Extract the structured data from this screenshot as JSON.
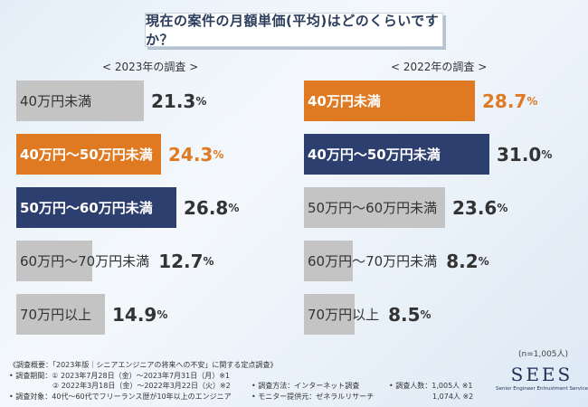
{
  "title": "現在の案件の月額単価(平均)はどのくらいですか？",
  "chart_data": [
    {
      "type": "bar",
      "title": "< 2023年の調査 >",
      "categories": [
        "40万円未満",
        "40万円～50万円未満",
        "50万円～60万円未満",
        "60万円～70万円未満",
        "70万円以上"
      ],
      "values": [
        21.3,
        24.3,
        26.8,
        12.7,
        14.9
      ],
      "unit": "%",
      "highlight": [
        null,
        "#e07a22",
        "#2d3f6e",
        null,
        null
      ]
    },
    {
      "type": "bar",
      "title": "< 2022年の調査 >",
      "categories": [
        "40万円未満",
        "40万円～50万円未満",
        "50万円～60万円未満",
        "60万円～70万円未満",
        "70万円以上"
      ],
      "values": [
        28.7,
        31.0,
        23.6,
        8.2,
        8.5
      ],
      "unit": "%",
      "highlight": [
        "#e07a22",
        "#2d3f6e",
        null,
        null,
        null
      ]
    }
  ],
  "colors": {
    "neutral_bar": "#c4c4c4",
    "orange": "#e07a22",
    "navy": "#2d3f6e",
    "title_text": "#2b3d5c"
  },
  "n_note": "(n=1,005人)",
  "footer": {
    "line1": "《調査概要：「2023年版｜シニアエンジニアの将来への不安」に関する定点調査》",
    "line2": "• 調査期間：① 2023年7月28日（金）～2023年7月31日（月）※1",
    "line3": "② 2022年3月18日（金）～2022年3月22日（火）※2",
    "line4": "• 調査対象：40代～60代でフリーランス歴が10年以上のエンジニア",
    "method": "• 調査方法：インターネット調査",
    "provider": "• モニター提供元：ゼネラルリサーチ",
    "count1": "• 調査人数：1,005人 ※1",
    "count2": "1,074人 ※2"
  },
  "logo": {
    "mark": "SEES",
    "sub": "Senior Engineer Entrustment Service"
  }
}
